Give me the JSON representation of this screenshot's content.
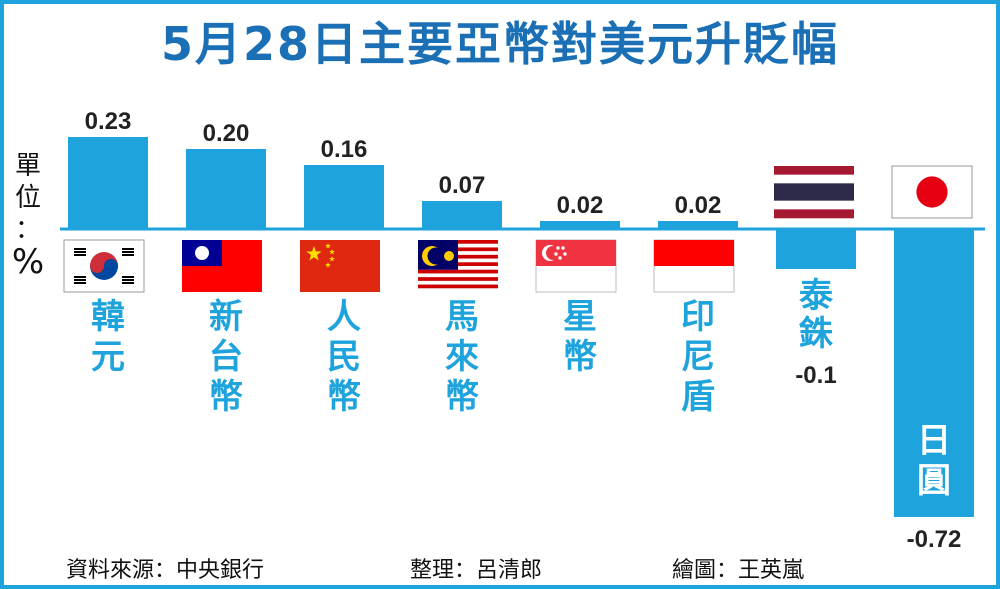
{
  "title": "5月28日主要亞幣對美元升貶幅",
  "unit_label": [
    "單",
    "位",
    "：",
    "%"
  ],
  "footer": {
    "source": "資料來源：中央銀行",
    "editor": "整理：呂清郎",
    "illustrator": "繪圖：王英嵐"
  },
  "colors": {
    "bar": "#1ea3dc",
    "title": "#1a6fb5",
    "label": "#1ea3dc",
    "value": "#222222"
  },
  "chart_data": {
    "type": "bar",
    "categories": [
      "韓元",
      "新台幣",
      "人民幣",
      "馬來幣",
      "星幣",
      "印尼盾",
      "泰銖",
      "日圓"
    ],
    "values": [
      0.23,
      0.2,
      0.16,
      0.07,
      0.02,
      0.02,
      -0.1,
      -0.72
    ],
    "value_labels": [
      "0.23",
      "0.20",
      "0.16",
      "0.07",
      "0.02",
      "0.02",
      "-0.1",
      "-0.72"
    ],
    "flags": [
      "korea-flag",
      "taiwan-flag",
      "china-flag",
      "malaysia-flag",
      "singapore-flag",
      "indonesia-flag",
      "thailand-flag",
      "japan-flag"
    ],
    "title": "5月28日主要亞幣對美元升貶幅",
    "ylabel": "單位：%",
    "grid": false,
    "legend": "none"
  }
}
